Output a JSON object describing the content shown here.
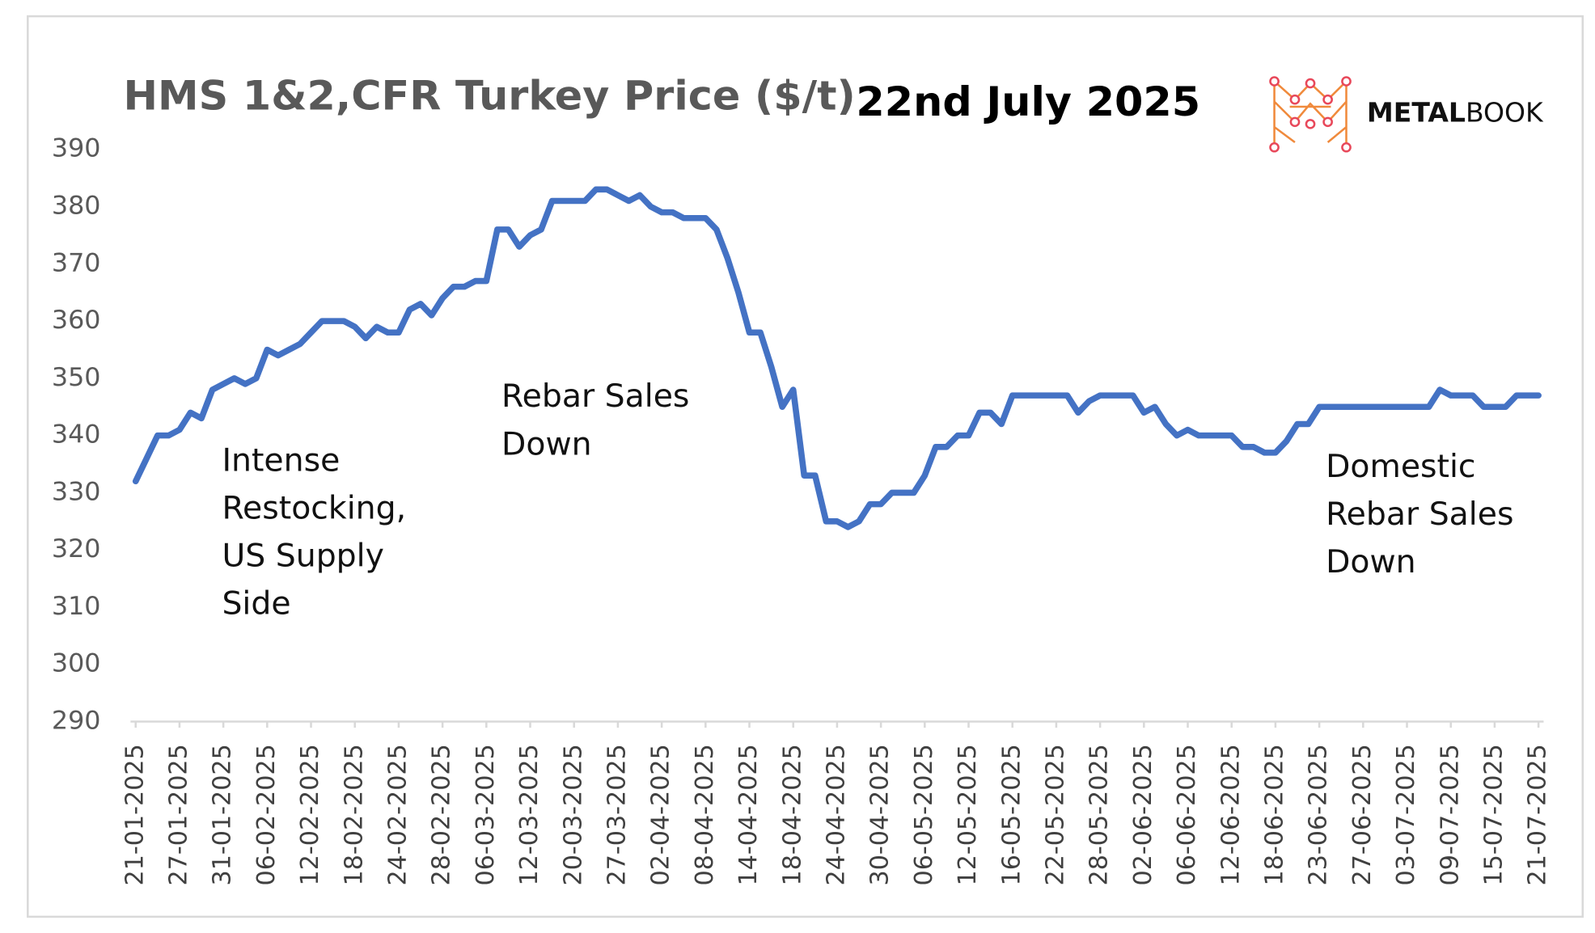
{
  "chart_data": {
    "type": "line",
    "title": "HMS 1&2,CFR Turkey Price ($/t)",
    "subtitle": "22nd July 2025",
    "brand": {
      "bold": "METAL",
      "light": "BOOK"
    },
    "annotations": [
      {
        "lines": [
          "Intense",
          "Restocking,",
          "US Supply",
          "Side"
        ]
      },
      {
        "lines": [
          "Rebar Sales",
          "Down"
        ]
      },
      {
        "lines": [
          "Domestic",
          "Rebar Sales",
          "Down"
        ]
      }
    ],
    "categories": [
      "21-01-2025",
      null,
      null,
      null,
      "27-01-2025",
      null,
      null,
      null,
      "31-01-2025",
      null,
      null,
      null,
      "06-02-2025",
      null,
      null,
      null,
      "12-02-2025",
      null,
      null,
      null,
      "18-02-2025",
      null,
      null,
      null,
      "24-02-2025",
      null,
      null,
      null,
      "28-02-2025",
      null,
      null,
      null,
      "06-03-2025",
      null,
      null,
      null,
      "12-03-2025",
      null,
      null,
      null,
      "20-03-2025",
      null,
      null,
      null,
      "27-03-2025",
      null,
      null,
      null,
      "02-04-2025",
      null,
      null,
      null,
      "08-04-2025",
      null,
      null,
      null,
      "14-04-2025",
      null,
      null,
      null,
      "18-04-2025",
      null,
      null,
      null,
      "24-04-2025",
      null,
      null,
      null,
      "30-04-2025",
      null,
      null,
      null,
      "06-05-2025",
      null,
      null,
      null,
      "12-05-2025",
      null,
      null,
      null,
      "16-05-2025",
      null,
      null,
      null,
      "22-05-2025",
      null,
      null,
      null,
      "28-05-2025",
      null,
      null,
      null,
      "02-06-2025",
      null,
      null,
      null,
      "06-06-2025",
      null,
      null,
      null,
      "12-06-2025",
      null,
      null,
      null,
      "18-06-2025",
      null,
      null,
      null,
      "23-06-2025",
      null,
      null,
      null,
      "27-06-2025",
      null,
      null,
      null,
      "03-07-2025",
      null,
      null,
      null,
      "09-07-2025",
      null,
      null,
      null,
      "15-07-2025",
      null,
      null,
      null,
      "21-07-2025"
    ],
    "series": [
      {
        "color": "#4472c4",
        "values": [
          332,
          336,
          340,
          340,
          341,
          344,
          343,
          348,
          349,
          350,
          349,
          350,
          355,
          354,
          355,
          356,
          358,
          360,
          360,
          360,
          359,
          357,
          359,
          358,
          358,
          362,
          363,
          361,
          364,
          366,
          366,
          367,
          367,
          376,
          376,
          373,
          375,
          376,
          381,
          381,
          381,
          381,
          383,
          383,
          382,
          381,
          382,
          380,
          379,
          379,
          378,
          378,
          378,
          376,
          371,
          365,
          358,
          358,
          352,
          345,
          348,
          333,
          333,
          325,
          325,
          324,
          325,
          328,
          328,
          330,
          330,
          330,
          333,
          338,
          338,
          340,
          340,
          344,
          344,
          342,
          347,
          347,
          347,
          347,
          347,
          347,
          344,
          346,
          347,
          347,
          347,
          347,
          344,
          345,
          342,
          340,
          341,
          340,
          340,
          340,
          340,
          338,
          338,
          337,
          337,
          339,
          342,
          342,
          345,
          345,
          345,
          345,
          345,
          345,
          345,
          345,
          345,
          345,
          345,
          348,
          347,
          347,
          347,
          345,
          345,
          345,
          347,
          347,
          347
        ]
      }
    ],
    "ylim": [
      290,
      390
    ],
    "yticks": [
      290,
      300,
      310,
      320,
      330,
      340,
      350,
      360,
      370,
      380,
      390
    ],
    "grid": false
  }
}
